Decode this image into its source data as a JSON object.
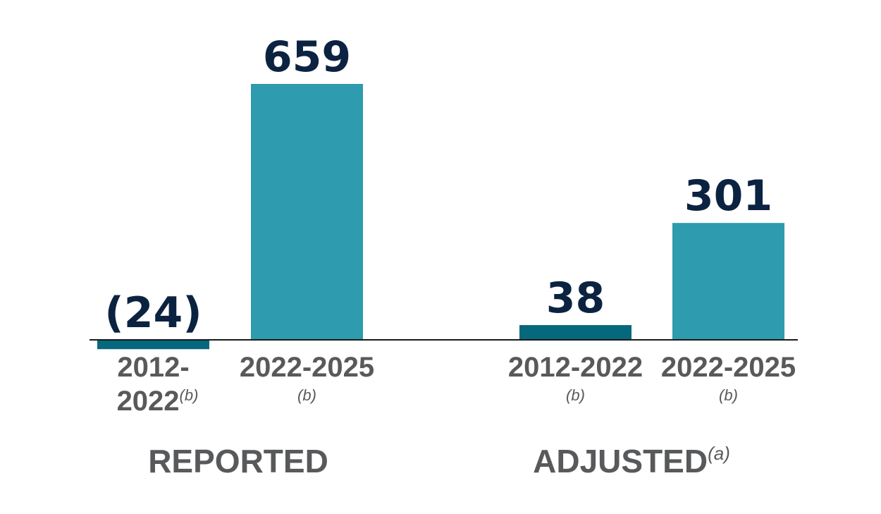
{
  "chart_data": {
    "type": "bar",
    "categories": [
      "2012-2022",
      "2022-2025",
      "2012-2022",
      "2022-2025"
    ],
    "values": [
      -24,
      659,
      38,
      301
    ],
    "value_labels": [
      "(24)",
      "659",
      "38",
      "301"
    ],
    "category_labels": [
      {
        "lines": [
          "2012-",
          "2022"
        ],
        "footnote": "(b)",
        "footnote_inline": true
      },
      {
        "lines": [
          "2022-2025"
        ],
        "footnote": "(b)",
        "footnote_inline": false
      },
      {
        "lines": [
          "2012-2022"
        ],
        "footnote": "(b)",
        "footnote_inline": false
      },
      {
        "lines": [
          "2022-2025"
        ],
        "footnote": "(b)",
        "footnote_inline": false
      }
    ],
    "groups": [
      {
        "label": "REPORTED",
        "footnote": "",
        "bars": [
          0,
          1
        ]
      },
      {
        "label": "ADJUSTED",
        "footnote": "(a)",
        "bars": [
          2,
          3
        ]
      }
    ],
    "colors": {
      "light_bar": "#2e9baf",
      "dark_bar": "#05687c",
      "value_text": "#0b2340",
      "label_text": "#58595b",
      "baseline": "#1a1a1a"
    },
    "bar_colors": [
      "dark_bar",
      "light_bar",
      "dark_bar",
      "light_bar"
    ],
    "grid": false,
    "legend": "none",
    "title": "",
    "xlabel": "",
    "ylabel": ""
  }
}
